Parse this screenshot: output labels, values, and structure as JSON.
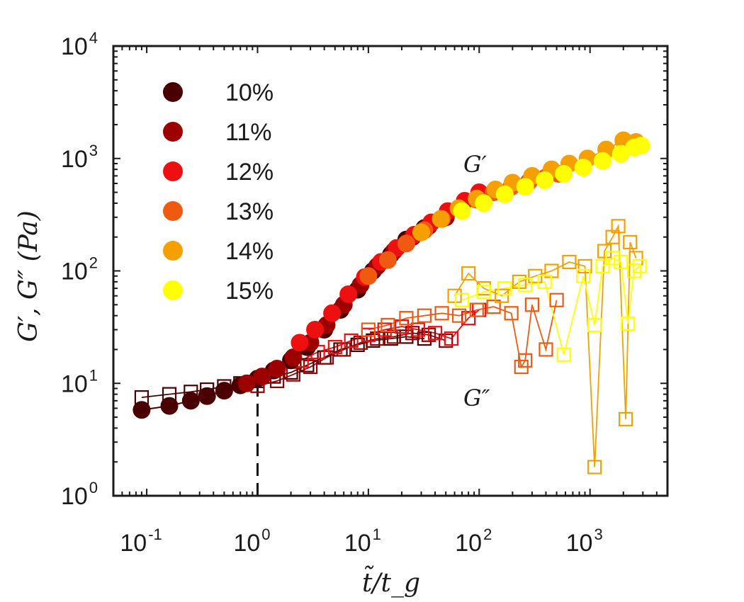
{
  "chart_data": {
    "type": "scatter",
    "xscale": "log",
    "yscale": "log",
    "xlim": [
      0.05,
      5000
    ],
    "ylim": [
      1,
      10000
    ],
    "xticks": [
      {
        "value": 0.1,
        "base": "10",
        "exp": "-1"
      },
      {
        "value": 1,
        "base": "10",
        "exp": "0"
      },
      {
        "value": 10,
        "base": "10",
        "exp": "1"
      },
      {
        "value": 100,
        "base": "10",
        "exp": "2"
      },
      {
        "value": 1000,
        "base": "10",
        "exp": "3"
      }
    ],
    "yticks": [
      {
        "value": 1,
        "base": "10",
        "exp": "0"
      },
      {
        "value": 10,
        "base": "10",
        "exp": "1"
      },
      {
        "value": 100,
        "base": "10",
        "exp": "2"
      },
      {
        "value": 1000,
        "base": "10",
        "exp": "3"
      },
      {
        "value": 10000,
        "base": "10",
        "exp": "4"
      }
    ],
    "xlabel": "t̃/t_g",
    "ylabel": "G′, G″ (Pa)",
    "reference_line": {
      "x": 1,
      "style": "dashed"
    },
    "annotations": [
      {
        "text": "G′",
        "x": 40,
        "y": 900
      },
      {
        "text": "G″",
        "x": 40,
        "y": 7.5
      }
    ],
    "legend_position": "top-left",
    "series": [
      {
        "name": "10%",
        "color": "#4a0000",
        "G_prime": [
          [
            0.09,
            5.8
          ],
          [
            0.16,
            6.3
          ],
          [
            0.25,
            7.0
          ],
          [
            0.35,
            7.7
          ],
          [
            0.5,
            8.6
          ],
          [
            0.7,
            9.6
          ],
          [
            1.0,
            11
          ],
          [
            1.4,
            13
          ],
          [
            2.0,
            16
          ],
          [
            2.8,
            21
          ],
          [
            4.0,
            30
          ],
          [
            5.6,
            45
          ],
          [
            8.0,
            68
          ],
          [
            11,
            100
          ],
          [
            16,
            140
          ],
          [
            22,
            190
          ],
          [
            32,
            240
          ]
        ],
        "G_double_prime": [
          [
            0.09,
            7.5
          ],
          [
            0.16,
            8.0
          ],
          [
            0.25,
            8.4
          ],
          [
            0.35,
            8.8
          ],
          [
            0.5,
            9.4
          ],
          [
            0.7,
            10.0
          ],
          [
            1.0,
            10.5
          ],
          [
            1.4,
            11.5
          ],
          [
            2.0,
            12.5
          ],
          [
            2.8,
            14.5
          ],
          [
            4.0,
            17
          ],
          [
            5.6,
            20
          ],
          [
            8.0,
            22
          ],
          [
            11,
            24
          ],
          [
            16,
            25
          ],
          [
            22,
            26
          ],
          [
            32,
            25
          ]
        ]
      },
      {
        "name": "11%",
        "color": "#9c0000",
        "G_prime": [
          [
            0.8,
            10
          ],
          [
            1.1,
            11.5
          ],
          [
            1.5,
            13.5
          ],
          [
            2.1,
            17
          ],
          [
            3.0,
            23
          ],
          [
            4.2,
            33
          ],
          [
            6.0,
            50
          ],
          [
            8.5,
            75
          ],
          [
            12,
            110
          ],
          [
            17,
            150
          ],
          [
            25,
            200
          ],
          [
            35,
            250
          ],
          [
            50,
            300
          ]
        ],
        "G_double_prime": [
          [
            1.0,
            9.5
          ],
          [
            1.5,
            10.5
          ],
          [
            2.1,
            12
          ],
          [
            3.0,
            14
          ],
          [
            4.2,
            17
          ],
          [
            6.0,
            20
          ],
          [
            8.5,
            23
          ],
          [
            12,
            25
          ],
          [
            17,
            26
          ],
          [
            25,
            28
          ],
          [
            35,
            27
          ],
          [
            50,
            24
          ]
        ]
      },
      {
        "name": "12%",
        "color": "#ee1010",
        "G_prime": [
          [
            2.4,
            23
          ],
          [
            3.3,
            30
          ],
          [
            4.7,
            42
          ],
          [
            6.6,
            62
          ],
          [
            9.3,
            88
          ],
          [
            13,
            120
          ],
          [
            18,
            160
          ],
          [
            26,
            210
          ],
          [
            37,
            270
          ],
          [
            52,
            340
          ],
          [
            74,
            420
          ],
          [
            100,
            500
          ]
        ],
        "G_double_prime": [
          [
            2.5,
            16
          ],
          [
            3.5,
            19
          ],
          [
            5.0,
            21
          ],
          [
            7.0,
            24
          ],
          [
            10,
            27
          ],
          [
            14,
            30
          ],
          [
            20,
            32
          ],
          [
            28,
            30
          ],
          [
            40,
            28
          ],
          [
            56,
            25
          ],
          [
            80,
            38
          ],
          [
            100,
            45
          ]
        ]
      },
      {
        "name": "13%",
        "color": "#f05a10",
        "G_prime": [
          [
            10,
            90
          ],
          [
            15,
            125
          ],
          [
            22,
            175
          ],
          [
            32,
            230
          ],
          [
            46,
            290
          ],
          [
            66,
            360
          ],
          [
            95,
            430
          ],
          [
            135,
            500
          ],
          [
            195,
            560
          ],
          [
            280,
            620
          ],
          [
            400,
            680
          ],
          [
            520,
            730
          ]
        ],
        "G_double_prime": [
          [
            10,
            30
          ],
          [
            15,
            33
          ],
          [
            22,
            38
          ],
          [
            32,
            40
          ],
          [
            46,
            42
          ],
          [
            66,
            40
          ],
          [
            95,
            45
          ],
          [
            135,
            48
          ],
          [
            195,
            42
          ],
          [
            240,
            14
          ],
          [
            260,
            16
          ],
          [
            300,
            50
          ],
          [
            400,
            20
          ],
          [
            500,
            55
          ]
        ]
      },
      {
        "name": "14%",
        "color": "#f5a000",
        "G_prime": [
          [
            30,
            220
          ],
          [
            45,
            290
          ],
          [
            65,
            360
          ],
          [
            95,
            440
          ],
          [
            140,
            530
          ],
          [
            200,
            610
          ],
          [
            300,
            700
          ],
          [
            450,
            800
          ],
          [
            650,
            900
          ],
          [
            950,
            1000
          ],
          [
            1400,
            1200
          ],
          [
            2000,
            1450
          ],
          [
            2600,
            1400
          ]
        ],
        "G_double_prime": [
          [
            60,
            60
          ],
          [
            80,
            95
          ],
          [
            110,
            70
          ],
          [
            160,
            60
          ],
          [
            230,
            80
          ],
          [
            320,
            90
          ],
          [
            450,
            100
          ],
          [
            650,
            120
          ],
          [
            900,
            110
          ],
          [
            1100,
            1.8
          ],
          [
            1350,
            150
          ],
          [
            1600,
            200
          ],
          [
            1800,
            250
          ],
          [
            2100,
            4.8
          ],
          [
            2300,
            180
          ],
          [
            2600,
            130
          ]
        ]
      },
      {
        "name": "15%",
        "color": "#ffff00",
        "G_prime": [
          [
            70,
            340
          ],
          [
            110,
            400
          ],
          [
            170,
            480
          ],
          [
            260,
            560
          ],
          [
            390,
            640
          ],
          [
            580,
            730
          ],
          [
            870,
            830
          ],
          [
            1300,
            950
          ],
          [
            1900,
            1100
          ],
          [
            2500,
            1250
          ],
          [
            2900,
            1300
          ]
        ],
        "G_double_prime": [
          [
            70,
            55
          ],
          [
            110,
            65
          ],
          [
            170,
            70
          ],
          [
            260,
            75
          ],
          [
            390,
            80
          ],
          [
            580,
            18
          ],
          [
            870,
            90
          ],
          [
            1100,
            33
          ],
          [
            1300,
            110
          ],
          [
            1600,
            130
          ],
          [
            1900,
            120
          ],
          [
            2200,
            34
          ],
          [
            2500,
            100
          ],
          [
            2800,
            110
          ]
        ]
      }
    ]
  }
}
